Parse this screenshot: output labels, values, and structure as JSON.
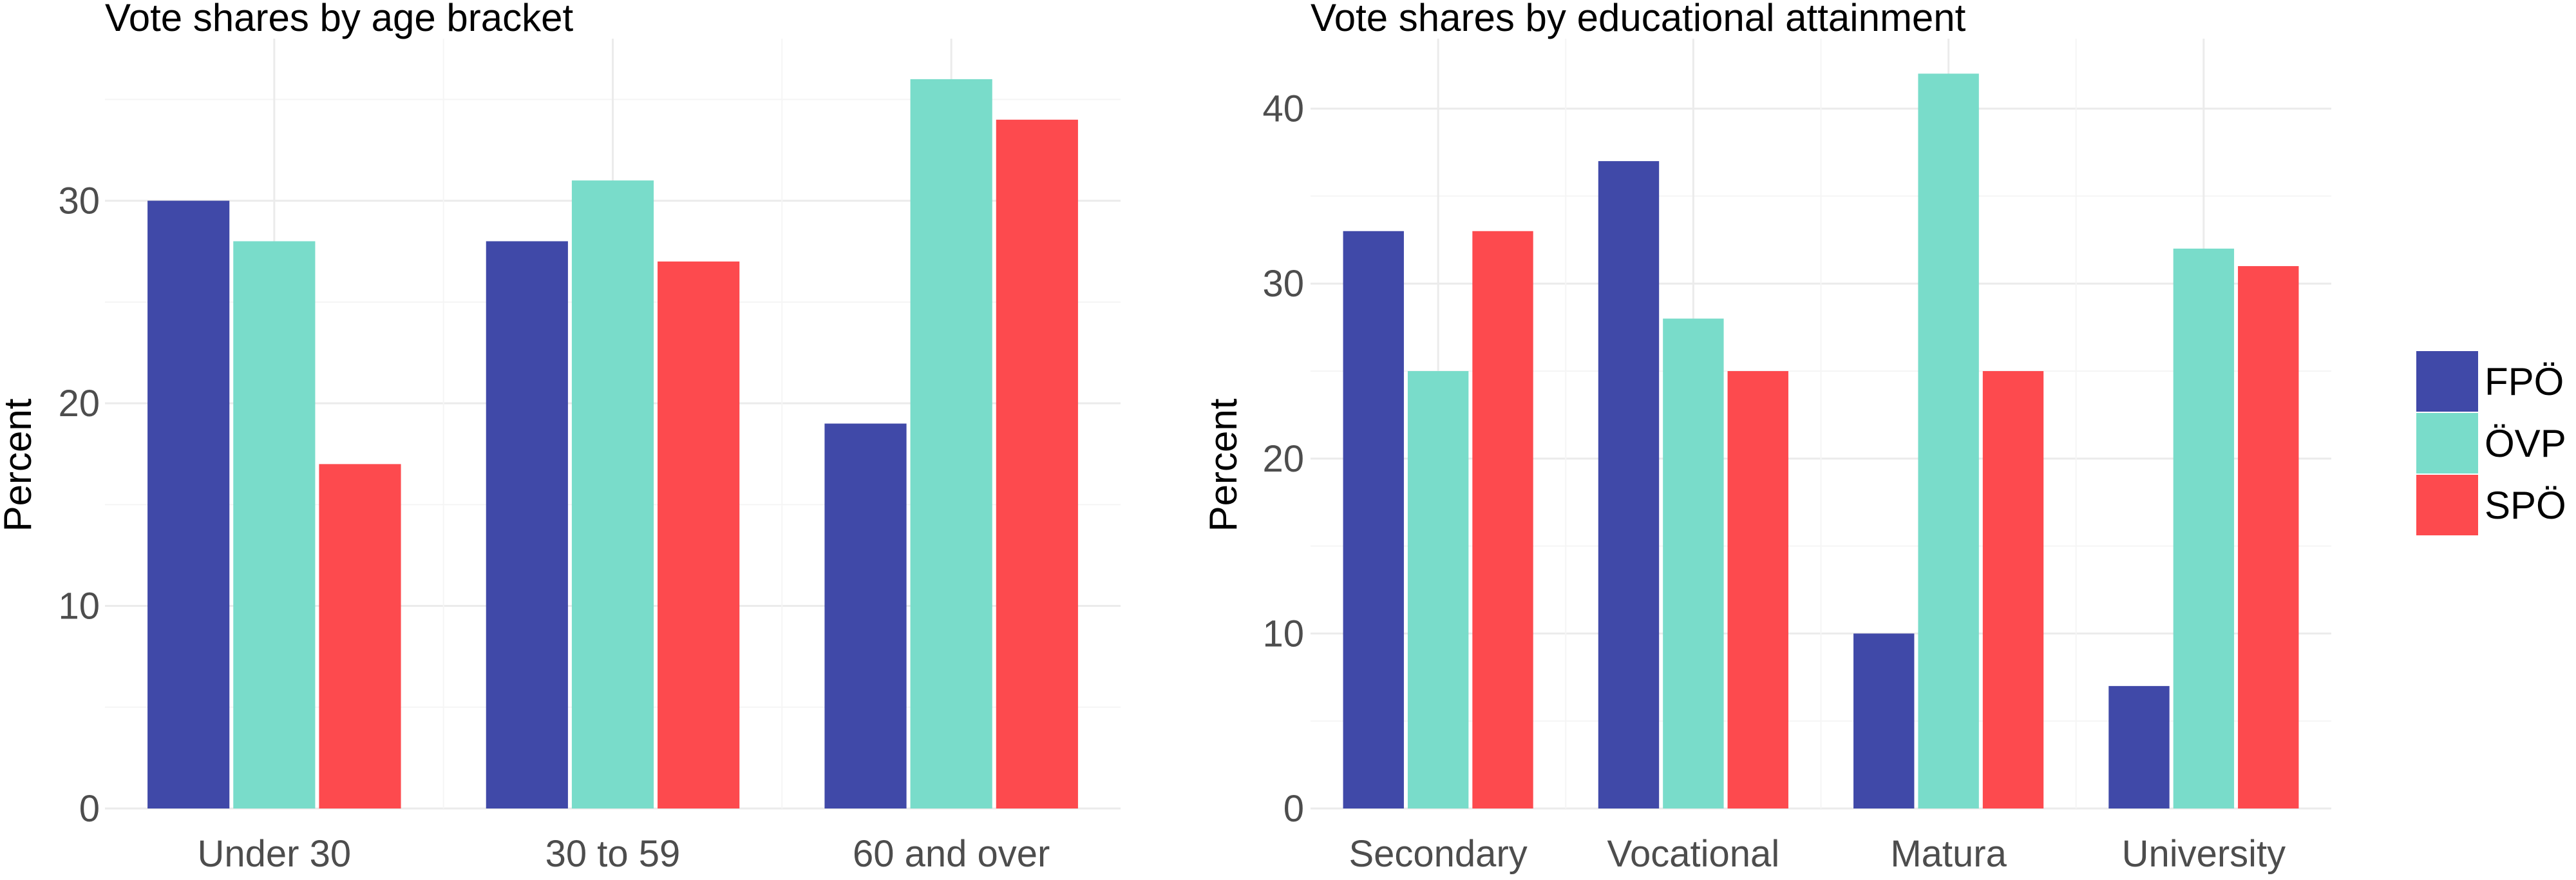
{
  "colors": {
    "FPÖ": "#4049a8",
    "ÖVP": "#79dcca",
    "SPÖ": "#fd4a4e"
  },
  "legend": {
    "placement": "right",
    "items": [
      "FPÖ",
      "ÖVP",
      "SPÖ"
    ]
  },
  "chart_data": [
    {
      "type": "bar",
      "title": "Vote shares by age bracket",
      "xlabel": "",
      "ylabel": "Percent",
      "categories": [
        "Under 30",
        "30 to 59",
        "60 and over"
      ],
      "series": [
        {
          "name": "FPÖ",
          "values": [
            30,
            28,
            19
          ]
        },
        {
          "name": "ÖVP",
          "values": [
            28,
            31,
            36
          ]
        },
        {
          "name": "SPÖ",
          "values": [
            17,
            27,
            34
          ]
        }
      ],
      "yticks": [
        0,
        10,
        20,
        30
      ],
      "ylim": [
        0,
        38
      ],
      "grid": true
    },
    {
      "type": "bar",
      "title": "Vote shares by educational attainment",
      "xlabel": "",
      "ylabel": "Percent",
      "categories": [
        "Secondary",
        "Vocational",
        "Matura",
        "University"
      ],
      "series": [
        {
          "name": "FPÖ",
          "values": [
            33,
            37,
            10,
            7
          ]
        },
        {
          "name": "ÖVP",
          "values": [
            25,
            28,
            42,
            32
          ]
        },
        {
          "name": "SPÖ",
          "values": [
            33,
            25,
            25,
            31
          ]
        }
      ],
      "yticks": [
        0,
        10,
        20,
        30,
        40
      ],
      "ylim": [
        0,
        44
      ],
      "grid": true
    }
  ]
}
